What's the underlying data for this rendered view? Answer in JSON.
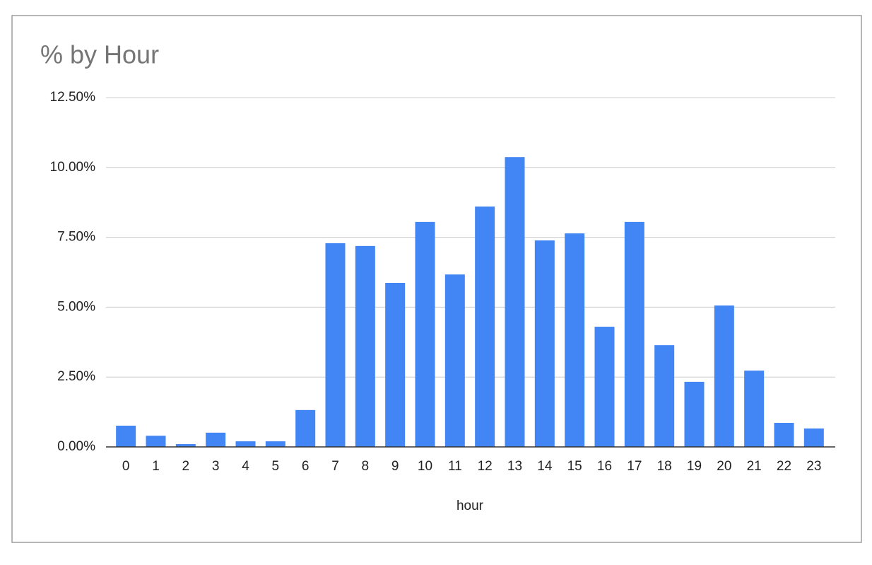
{
  "chart_data": {
    "type": "bar",
    "title": "% by Hour",
    "x_label": "hour",
    "categories": [
      "0",
      "1",
      "2",
      "3",
      "4",
      "5",
      "6",
      "7",
      "8",
      "9",
      "10",
      "11",
      "12",
      "13",
      "14",
      "15",
      "16",
      "17",
      "18",
      "19",
      "20",
      "21",
      "22",
      "23"
    ],
    "values": [
      0.76,
      0.4,
      0.1,
      0.51,
      0.2,
      0.2,
      1.32,
      7.29,
      7.19,
      5.87,
      8.05,
      6.17,
      8.6,
      10.37,
      7.39,
      7.64,
      4.3,
      8.05,
      3.64,
      2.33,
      5.06,
      2.73,
      0.86,
      0.66
    ],
    "color": "#4285f4",
    "ylim": [
      0,
      12.5
    ],
    "yticks": [
      {
        "value": 0,
        "label": "0.00%"
      },
      {
        "value": 2.5,
        "label": "2.50%"
      },
      {
        "value": 5,
        "label": "5.00%"
      },
      {
        "value": 7.5,
        "label": "7.50%"
      },
      {
        "value": 10,
        "label": "10.00%"
      },
      {
        "value": 12.5,
        "label": "12.50%"
      }
    ],
    "grid": true
  }
}
